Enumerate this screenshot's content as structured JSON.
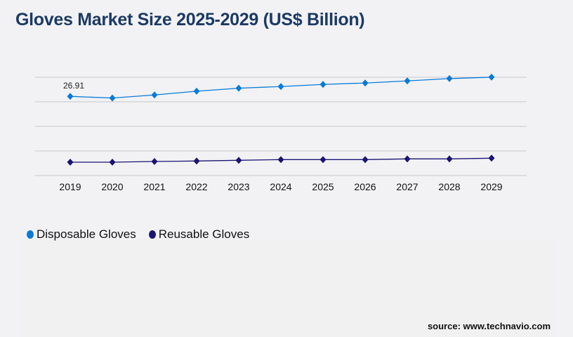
{
  "title": "Gloves Market Size 2025-2029 (US$ Billion)",
  "source": "source: www.technavio.com",
  "colors": {
    "disposable": "#0a7bd4",
    "reusable": "#1a1470",
    "title": "#1c3a63",
    "grid": "#c8c8c8"
  },
  "chart_data": {
    "type": "line",
    "title": "Gloves Market Size 2025-2029 (US$ Billion)",
    "x": [
      "2019",
      "2020",
      "2021",
      "2022",
      "2023",
      "2024",
      "2025",
      "2026",
      "2027",
      "2028",
      "2029"
    ],
    "ylim": [
      0,
      33.4
    ],
    "grid": true,
    "legend_position": "bottom-left",
    "series": [
      {
        "name": "Disposable Gloves",
        "values": [
          26.91,
          26.33,
          27.38,
          28.65,
          29.67,
          30.24,
          30.96,
          31.44,
          32.15,
          32.94,
          33.42
        ]
      },
      {
        "name": "Reusable Gloves",
        "values": [
          4.54,
          4.54,
          4.77,
          4.93,
          5.17,
          5.41,
          5.41,
          5.41,
          5.65,
          5.65,
          5.89
        ]
      }
    ],
    "data_labels": [
      {
        "series": 0,
        "index": 0,
        "text": "26.91"
      }
    ]
  }
}
